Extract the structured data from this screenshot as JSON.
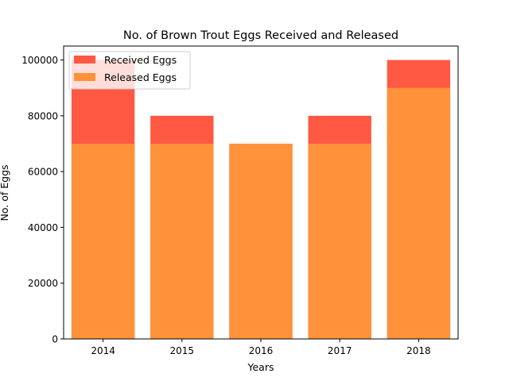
{
  "chart_data": {
    "type": "bar",
    "title": "No. of Brown Trout Eggs Received and Released",
    "xlabel": "Years",
    "ylabel": "No. of Eggs",
    "categories": [
      "2014",
      "2015",
      "2016",
      "2017",
      "2018"
    ],
    "series": [
      {
        "name": "Received Eggs",
        "values": [
          100000,
          80000,
          70000,
          80000,
          100000
        ],
        "color": "#ff5843"
      },
      {
        "name": "Released Eggs",
        "values": [
          70000,
          70000,
          70000,
          70000,
          90000
        ],
        "color": "#ff923a"
      }
    ],
    "ylim": [
      0,
      105000
    ],
    "yticks": [
      0,
      20000,
      40000,
      60000,
      80000,
      100000
    ],
    "ytick_labels": [
      "0",
      "20000",
      "40000",
      "60000",
      "80000",
      "100000"
    ],
    "grid": false,
    "legend_position": "upper-left"
  }
}
